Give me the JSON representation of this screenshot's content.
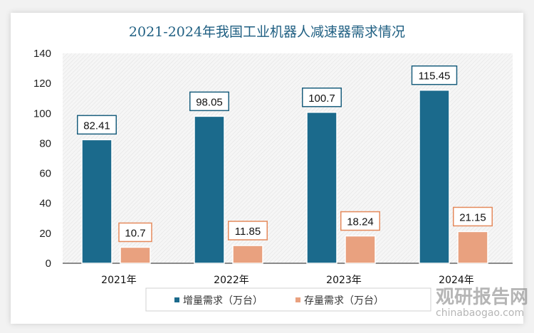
{
  "chart_data": {
    "type": "bar",
    "title": "2021-2024年我国工业机器人减速器需求情况",
    "categories": [
      "2021年",
      "2022年",
      "2023年",
      "2024年"
    ],
    "series": [
      {
        "name": "增量需求（万台）",
        "values": [
          82.41,
          98.05,
          100.7,
          115.45
        ],
        "color": "#1b6a8c",
        "label_border": "#1b5f7e"
      },
      {
        "name": "存量需求（万台）",
        "values": [
          10.7,
          11.85,
          18.24,
          21.15
        ],
        "color": "#e9a17f",
        "label_border": "#e58a5c"
      }
    ],
    "data_labels": [
      [
        "82.41",
        "98.05",
        "100.7",
        "115.45"
      ],
      [
        "10.7",
        "11.85",
        "18.24",
        "21.15"
      ]
    ],
    "ylim": [
      0,
      140
    ],
    "yticks": [
      "0",
      "20",
      "40",
      "60",
      "80",
      "100",
      "120",
      "140"
    ],
    "grid": false,
    "plot_background": "hatched light gray",
    "legend": "bottom"
  },
  "watermark": {
    "name": "观研报告网",
    "url": "chinabaogao.com"
  }
}
